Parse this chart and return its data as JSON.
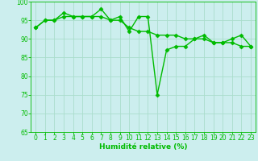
{
  "line1_x": [
    0,
    1,
    2,
    3,
    4,
    5,
    6,
    7,
    8,
    9,
    10,
    11,
    12,
    13,
    14,
    15,
    16,
    17,
    18,
    19,
    20,
    21,
    22,
    23
  ],
  "line1_y": [
    93,
    95,
    95,
    97,
    96,
    96,
    96,
    98,
    95,
    96,
    92,
    96,
    96,
    75,
    87,
    88,
    88,
    90,
    91,
    89,
    89,
    90,
    91,
    88
  ],
  "line2_x": [
    0,
    1,
    2,
    3,
    4,
    5,
    6,
    7,
    8,
    9,
    10,
    11,
    12,
    13,
    14,
    15,
    16,
    17,
    18,
    19,
    20,
    21,
    22,
    23
  ],
  "line2_y": [
    93,
    95,
    95,
    96,
    96,
    96,
    96,
    96,
    95,
    95,
    93,
    92,
    92,
    91,
    91,
    91,
    90,
    90,
    90,
    89,
    89,
    89,
    88,
    88
  ],
  "line_color": "#00BB00",
  "marker": "D",
  "markersize": 2.5,
  "xlabel": "Humidité relative (%)",
  "ylim": [
    65,
    100
  ],
  "xlim_min": -0.5,
  "xlim_max": 23.5,
  "yticks": [
    65,
    70,
    75,
    80,
    85,
    90,
    95,
    100
  ],
  "xticks": [
    0,
    1,
    2,
    3,
    4,
    5,
    6,
    7,
    8,
    9,
    10,
    11,
    12,
    13,
    14,
    15,
    16,
    17,
    18,
    19,
    20,
    21,
    22,
    23
  ],
  "grid_color": "#aaddcc",
  "bg_color": "#cceeee",
  "font_color": "#00BB00",
  "xlabel_fontsize": 6.5,
  "tick_fontsize": 5.5,
  "linewidth": 1.0
}
